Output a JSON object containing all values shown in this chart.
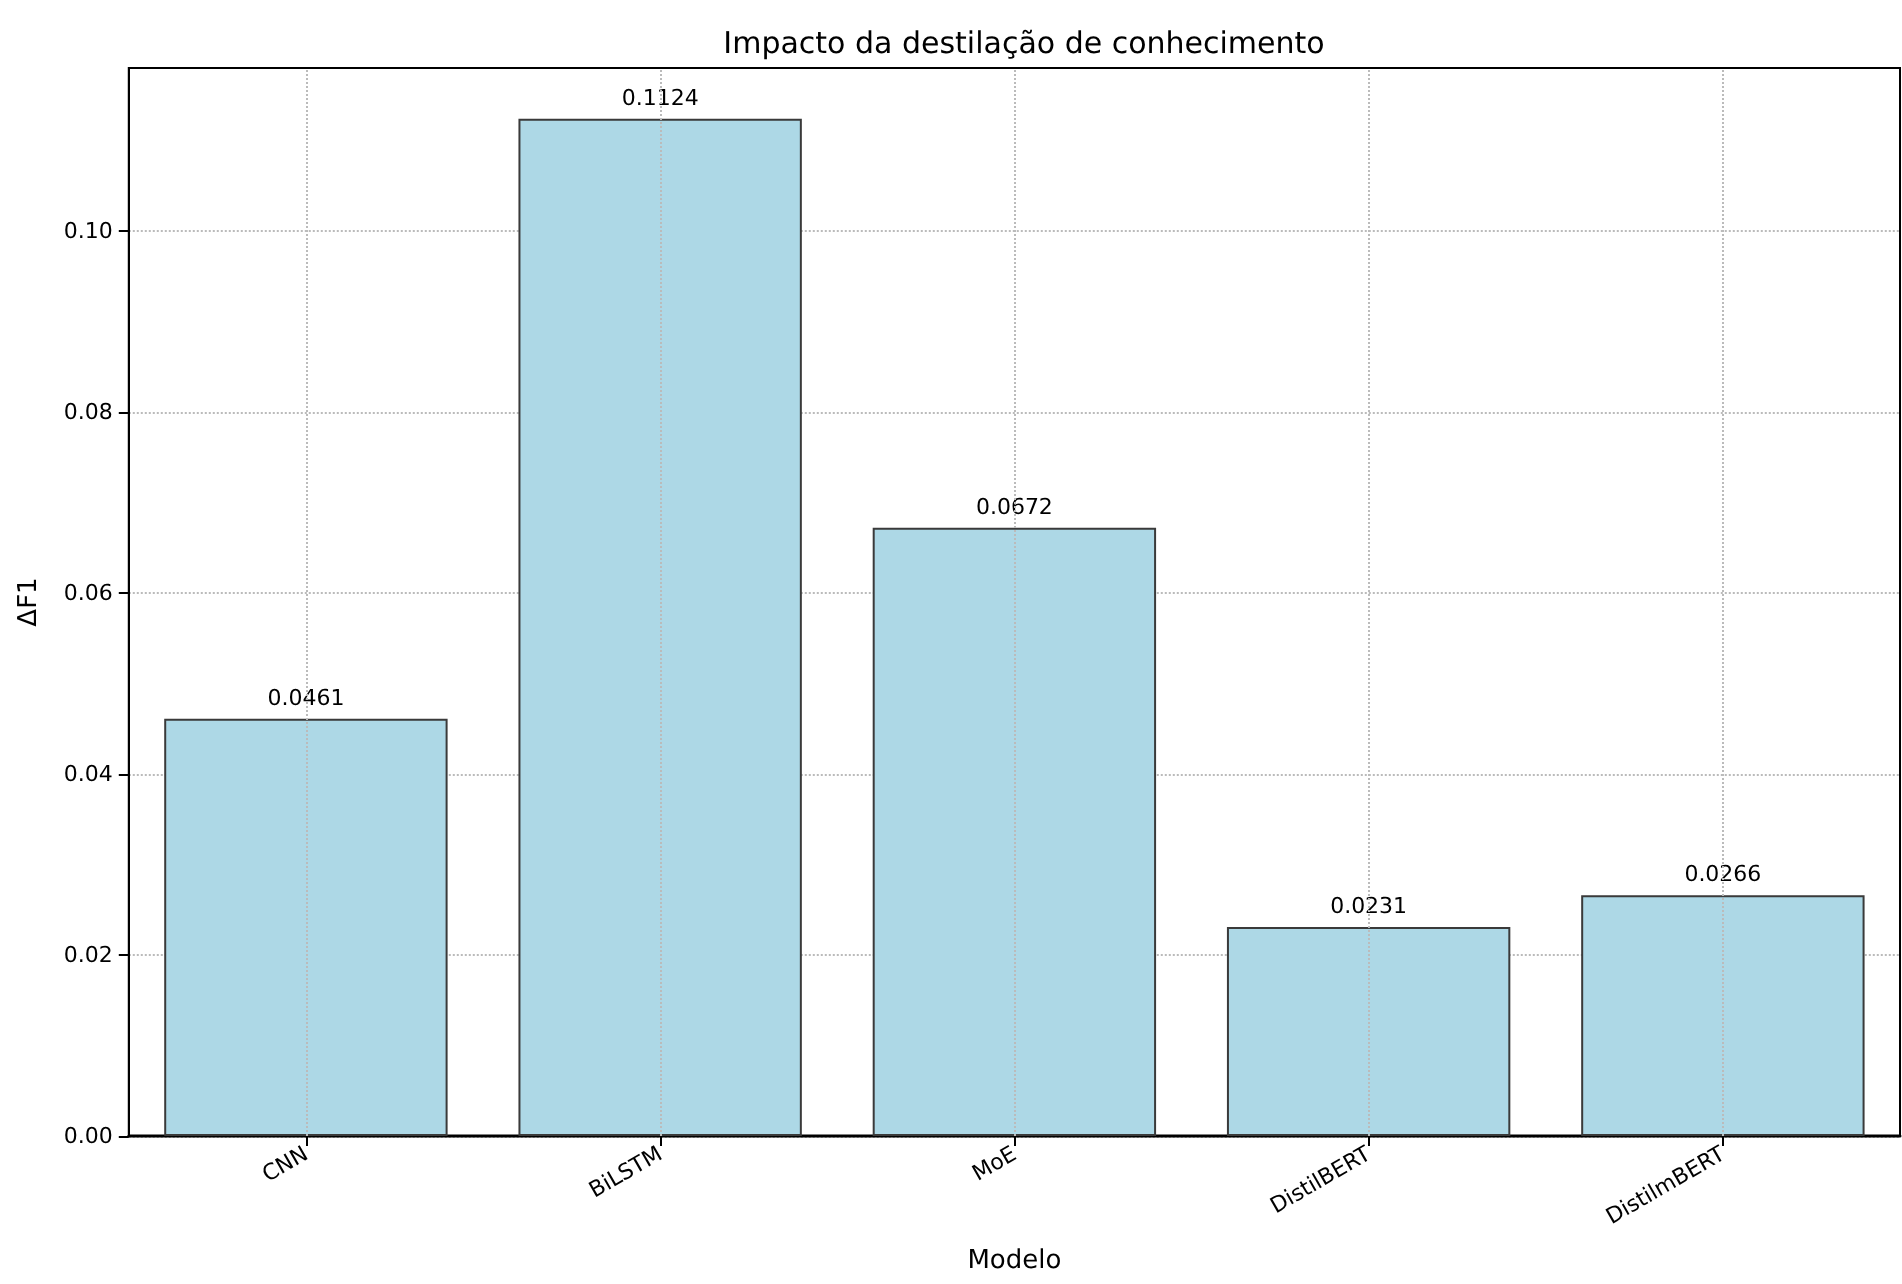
{
  "chart_data": {
    "type": "bar",
    "title": "Impacto da destilação de conhecimento",
    "xlabel": "Modelo",
    "ylabel": "ΔF1",
    "categories": [
      "CNN",
      "BiLSTM",
      "MoE",
      "DistilBERT",
      "DistilmBERT"
    ],
    "values": [
      0.0461,
      0.1124,
      0.0672,
      0.0231,
      0.0266
    ],
    "color": "#add8e6",
    "ylim": [
      0,
      0.118
    ],
    "yticks": [
      {
        "value": 0,
        "label": "0.00"
      },
      0.02,
      0.04,
      0.06,
      0.08,
      {
        "value": 0.1,
        "label": "0.10"
      }
    ],
    "grid": true,
    "data_labels": true
  }
}
